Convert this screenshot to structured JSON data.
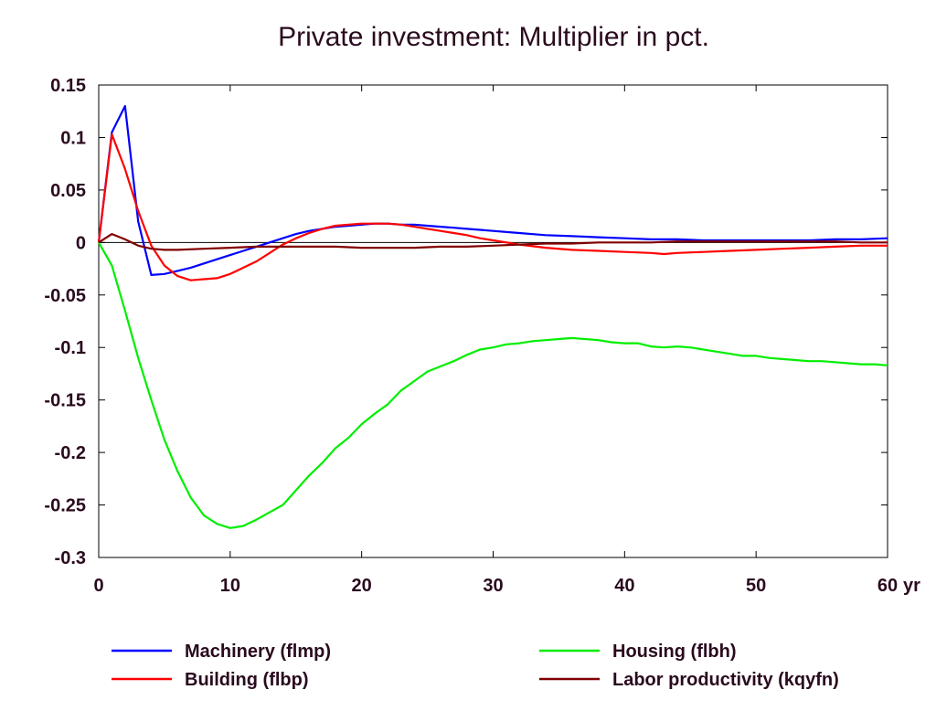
{
  "chart_data": {
    "type": "line",
    "title": "Private investment: Multiplier in pct.",
    "xlabel": "",
    "ylabel": "",
    "x_unit_label": "yr",
    "xlim": [
      0,
      60
    ],
    "ylim": [
      -0.3,
      0.15
    ],
    "x_ticks": [
      0,
      10,
      20,
      30,
      40,
      50,
      60
    ],
    "y_ticks": [
      0.15,
      0.1,
      0.05,
      0,
      -0.05,
      -0.1,
      -0.15,
      -0.2,
      -0.25,
      -0.3
    ],
    "y_tick_labels": [
      "0.15",
      "0.1",
      "0.05",
      "0",
      "-0.05",
      "-0.1",
      "-0.15",
      "-0.2",
      "-0.25",
      "-0.3"
    ],
    "grid": false,
    "zero_line": true,
    "legend_position": "bottom",
    "series": [
      {
        "name": "Machinery (flmp)",
        "color": "#0000ff",
        "x": [
          0,
          1,
          2,
          3,
          4,
          5,
          6,
          7,
          8,
          9,
          10,
          11,
          12,
          13,
          14,
          15,
          16,
          17,
          18,
          19,
          20,
          21,
          22,
          23,
          24,
          25,
          26,
          27,
          28,
          29,
          30,
          32,
          34,
          36,
          38,
          40,
          42,
          44,
          46,
          48,
          50,
          52,
          54,
          56,
          58,
          60
        ],
        "values": [
          0,
          0.105,
          0.13,
          0.02,
          -0.031,
          -0.03,
          -0.027,
          -0.024,
          -0.02,
          -0.016,
          -0.012,
          -0.008,
          -0.004,
          0.0,
          0.004,
          0.008,
          0.011,
          0.013,
          0.015,
          0.016,
          0.017,
          0.018,
          0.018,
          0.017,
          0.017,
          0.016,
          0.015,
          0.014,
          0.013,
          0.012,
          0.011,
          0.009,
          0.007,
          0.006,
          0.005,
          0.004,
          0.003,
          0.003,
          0.002,
          0.002,
          0.002,
          0.002,
          0.002,
          0.003,
          0.003,
          0.004
        ]
      },
      {
        "name": "Building (flbp)",
        "color": "#ff0000",
        "x": [
          0,
          1,
          2,
          3,
          4,
          5,
          6,
          7,
          8,
          9,
          10,
          11,
          12,
          13,
          14,
          15,
          16,
          17,
          18,
          19,
          20,
          21,
          22,
          23,
          24,
          25,
          26,
          27,
          28,
          29,
          30,
          32,
          34,
          36,
          38,
          40,
          42,
          43,
          44,
          46,
          48,
          50,
          52,
          54,
          56,
          58,
          60
        ],
        "values": [
          0,
          0.103,
          0.07,
          0.03,
          -0.003,
          -0.022,
          -0.032,
          -0.036,
          -0.035,
          -0.034,
          -0.03,
          -0.024,
          -0.018,
          -0.01,
          -0.002,
          0.004,
          0.009,
          0.013,
          0.016,
          0.017,
          0.018,
          0.018,
          0.018,
          0.017,
          0.015,
          0.013,
          0.011,
          0.009,
          0.007,
          0.004,
          0.002,
          -0.002,
          -0.005,
          -0.007,
          -0.008,
          -0.009,
          -0.01,
          -0.011,
          -0.01,
          -0.009,
          -0.008,
          -0.007,
          -0.006,
          -0.005,
          -0.004,
          -0.003,
          -0.003
        ]
      },
      {
        "name": "Housing (flbh)",
        "color": "#00ee00",
        "x": [
          0,
          1,
          2,
          3,
          4,
          5,
          6,
          7,
          8,
          9,
          10,
          11,
          12,
          13,
          14,
          15,
          16,
          17,
          18,
          19,
          20,
          21,
          22,
          23,
          24,
          25,
          26,
          27,
          28,
          29,
          30,
          31,
          32,
          33,
          34,
          35,
          36,
          37,
          38,
          39,
          40,
          41,
          42,
          43,
          44,
          45,
          46,
          47,
          48,
          49,
          50,
          51,
          52,
          53,
          54,
          55,
          56,
          57,
          58,
          59,
          60
        ],
        "values": [
          0,
          -0.022,
          -0.065,
          -0.11,
          -0.15,
          -0.188,
          -0.218,
          -0.243,
          -0.26,
          -0.268,
          -0.272,
          -0.27,
          -0.264,
          -0.257,
          -0.25,
          -0.236,
          -0.222,
          -0.21,
          -0.196,
          -0.186,
          -0.173,
          -0.163,
          -0.154,
          -0.141,
          -0.132,
          -0.123,
          -0.118,
          -0.113,
          -0.107,
          -0.102,
          -0.1,
          -0.097,
          -0.096,
          -0.094,
          -0.093,
          -0.092,
          -0.091,
          -0.092,
          -0.093,
          -0.095,
          -0.096,
          -0.096,
          -0.099,
          -0.1,
          -0.099,
          -0.1,
          -0.102,
          -0.104,
          -0.106,
          -0.108,
          -0.108,
          -0.11,
          -0.111,
          -0.112,
          -0.113,
          -0.113,
          -0.114,
          -0.115,
          -0.116,
          -0.116,
          -0.117
        ]
      },
      {
        "name": "Labor productivity (kqyfn)",
        "color": "#800000",
        "x": [
          0,
          1,
          2,
          3,
          4,
          5,
          6,
          8,
          10,
          12,
          14,
          16,
          18,
          20,
          22,
          24,
          26,
          28,
          30,
          32,
          34,
          36,
          38,
          40,
          42,
          44,
          46,
          48,
          50,
          52,
          54,
          56,
          58,
          60
        ],
        "values": [
          0,
          0.008,
          0.003,
          -0.003,
          -0.006,
          -0.007,
          -0.007,
          -0.006,
          -0.005,
          -0.004,
          -0.004,
          -0.004,
          -0.004,
          -0.005,
          -0.005,
          -0.005,
          -0.004,
          -0.004,
          -0.003,
          -0.002,
          -0.001,
          -0.001,
          0.0,
          0.0,
          0.0,
          0.001,
          0.001,
          0.001,
          0.001,
          0.001,
          0.001,
          0.001,
          0.0,
          0.0
        ]
      }
    ]
  }
}
